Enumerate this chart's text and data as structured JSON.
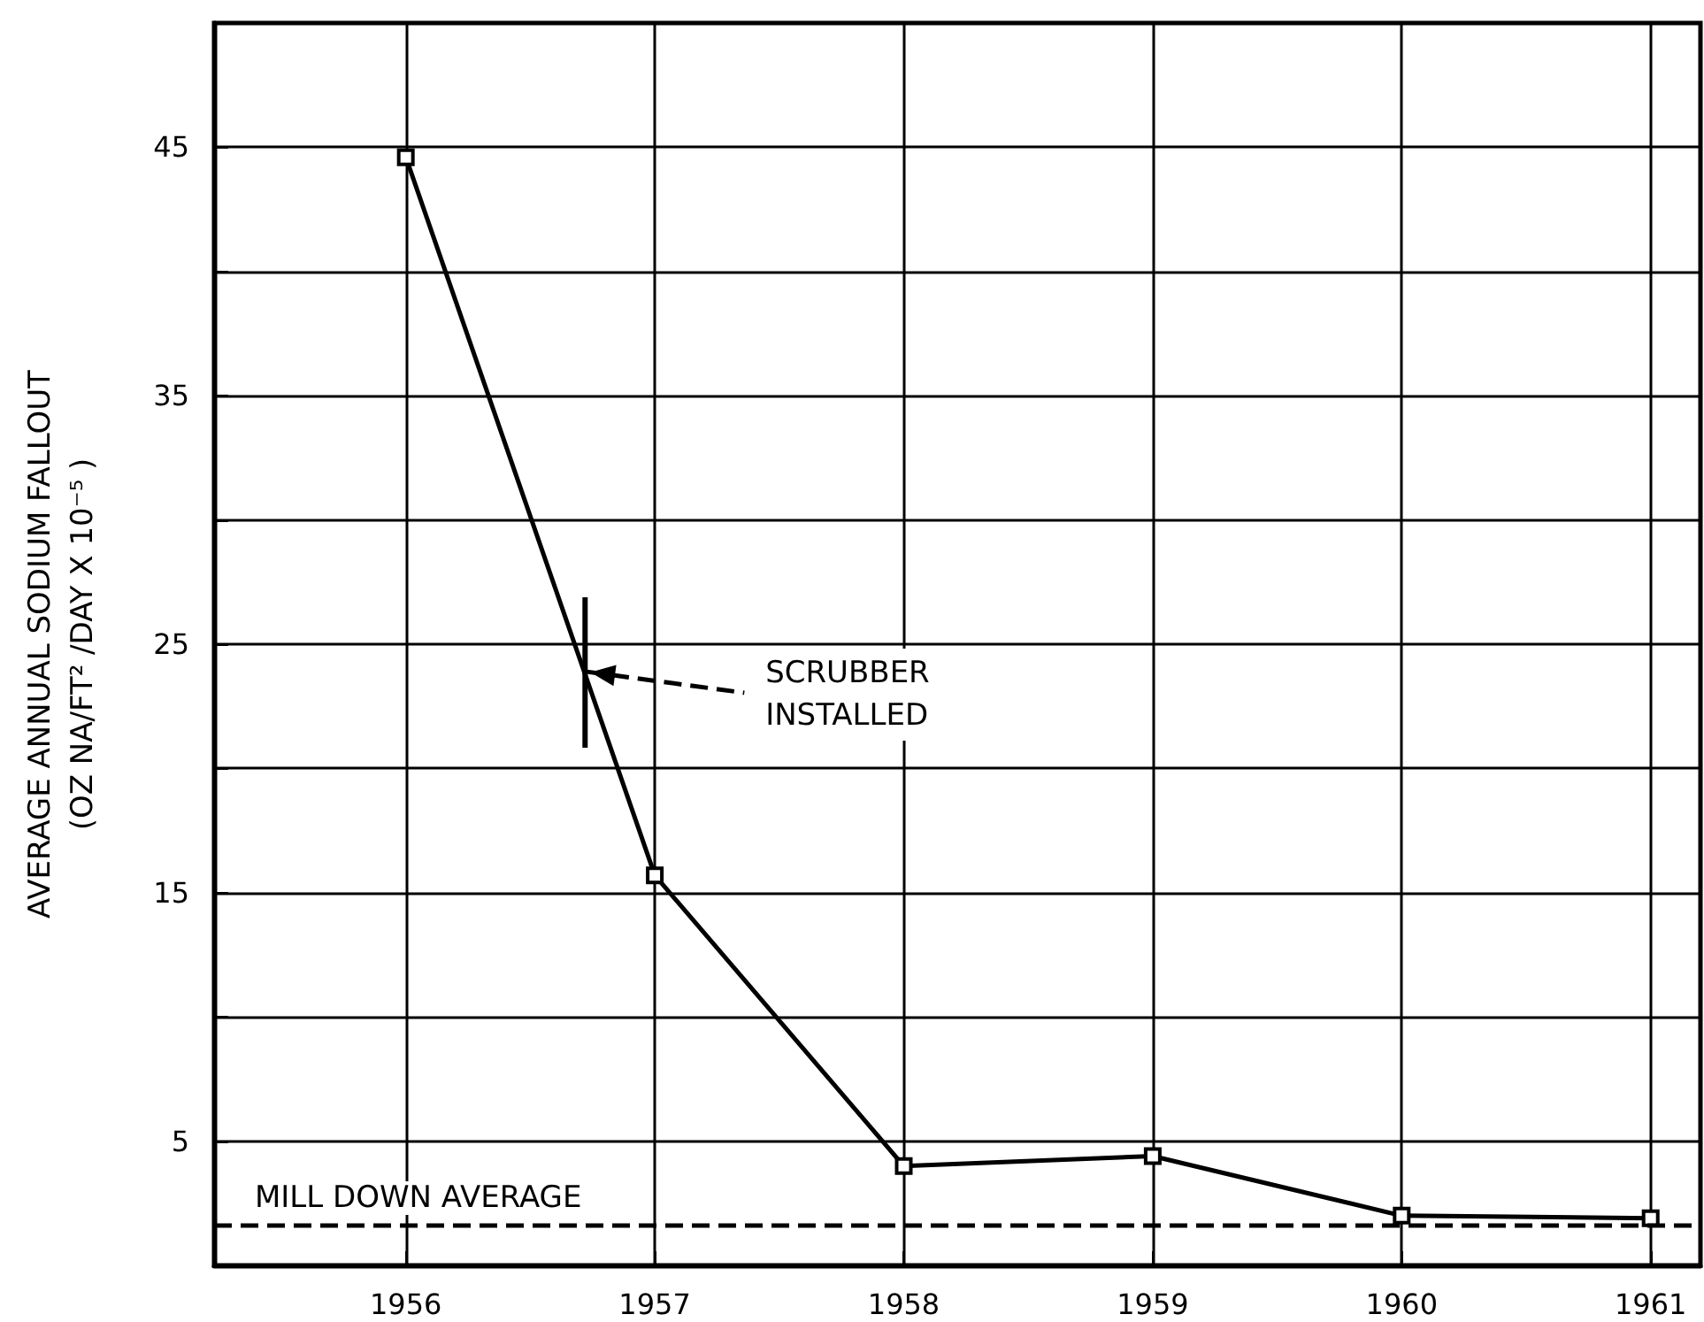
{
  "chart_data": {
    "type": "line",
    "ylabel": "AVERAGE ANNUAL SODIUM FALLOUT\n(OZ NA/FT² /DAY X 10⁻⁵ )",
    "x": [
      1956,
      1957,
      1958,
      1959,
      1960,
      1961
    ],
    "series": [
      {
        "color": "#000000",
        "values": [
          44.6,
          15.7,
          4.0,
          4.4,
          2.0,
          1.9
        ]
      }
    ],
    "xlim": [
      1955.23,
      1961.2
    ],
    "xticks": [
      1956,
      1957,
      1958,
      1959,
      1960,
      1961
    ],
    "ylim": [
      0,
      50
    ],
    "yticks": [
      5,
      {
        "value": 10,
        "label": null
      },
      15,
      {
        "value": 20,
        "label": null
      },
      25,
      {
        "value": 30,
        "label": null
      },
      35,
      {
        "value": 40,
        "label": null
      },
      45
    ],
    "ref_lines": [
      {
        "axis": "y",
        "value": 1.6,
        "label": "MILL DOWN AVERAGE",
        "color": "#000000",
        "line_style": "dashed"
      }
    ],
    "annotations": [
      {
        "text": "SCRUBBER\nINSTALLED",
        "x": 1956.72,
        "y": 23.9
      }
    ],
    "grid": true,
    "marker": "square",
    "line_style": "solid"
  }
}
